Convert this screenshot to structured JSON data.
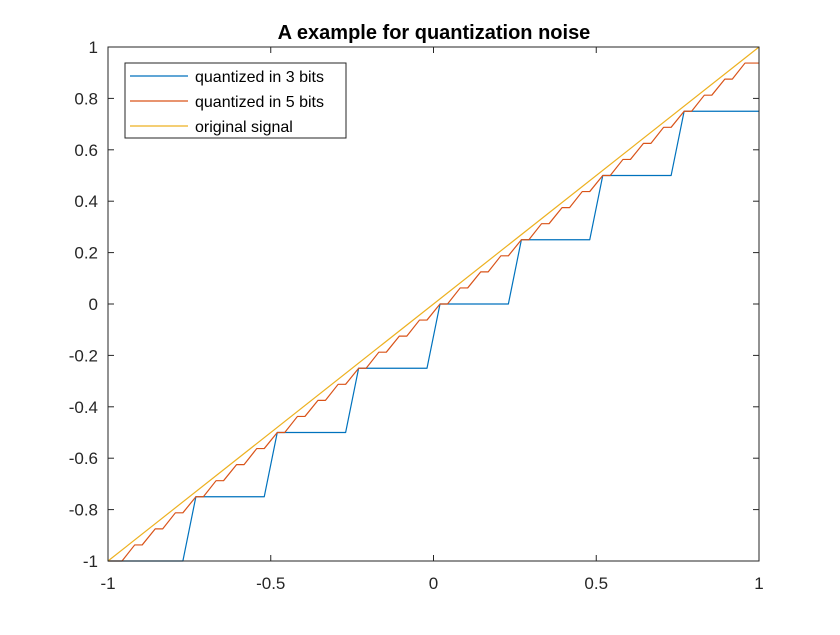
{
  "chart_data": {
    "type": "line",
    "title": "A example for quantization noise",
    "xlabel": "",
    "ylabel": "",
    "xlim": [
      -1,
      1
    ],
    "ylim": [
      -1,
      1
    ],
    "xticks": [
      -1,
      -0.5,
      0,
      0.5,
      1
    ],
    "xtick_labels": [
      "-1",
      "-0.5",
      "0",
      "0.5",
      "1"
    ],
    "yticks": [
      -1,
      -0.8,
      -0.6,
      -0.4,
      -0.2,
      0,
      0.2,
      0.4,
      0.6,
      0.8,
      1
    ],
    "ytick_labels": [
      "-1",
      "-0.8",
      "-0.6",
      "-0.4",
      "-0.2",
      "0",
      "0.2",
      "0.4",
      "0.6",
      "0.8",
      "1"
    ],
    "grid": false,
    "legend_position": "top-left",
    "series": [
      {
        "name": "quantized in 3 bits",
        "color": "#0072BD",
        "kind": "staircase",
        "x": [
          -1,
          -0.77,
          -0.73,
          -0.52,
          -0.48,
          -0.27,
          -0.23,
          -0.02,
          0.02,
          0.23,
          0.27,
          0.48,
          0.52,
          0.73,
          0.77,
          1
        ],
        "y": [
          -1,
          -1,
          -0.75,
          -0.75,
          -0.5,
          -0.5,
          -0.25,
          -0.25,
          0,
          0,
          0.25,
          0.25,
          0.5,
          0.5,
          0.75,
          0.75
        ]
      },
      {
        "name": "quantized in 5 bits",
        "color": "#D95319",
        "kind": "staircase",
        "x": [
          -1,
          -0.957,
          -0.918,
          -0.895,
          -0.855,
          -0.832,
          -0.793,
          -0.77,
          -0.73,
          -0.707,
          -0.668,
          -0.645,
          -0.605,
          -0.582,
          -0.543,
          -0.52,
          -0.48,
          -0.457,
          -0.418,
          -0.395,
          -0.355,
          -0.332,
          -0.293,
          -0.27,
          -0.23,
          -0.207,
          -0.168,
          -0.145,
          -0.105,
          -0.082,
          -0.043,
          -0.02,
          0.02,
          0.043,
          0.082,
          0.105,
          0.145,
          0.168,
          0.207,
          0.23,
          0.27,
          0.293,
          0.332,
          0.355,
          0.395,
          0.418,
          0.457,
          0.48,
          0.52,
          0.543,
          0.582,
          0.605,
          0.645,
          0.668,
          0.707,
          0.73,
          0.77,
          0.793,
          0.832,
          0.855,
          0.895,
          0.918,
          0.957,
          0.98,
          1
        ],
        "y": [
          -1,
          -1,
          -0.9375,
          -0.9375,
          -0.875,
          -0.875,
          -0.8125,
          -0.8125,
          -0.75,
          -0.75,
          -0.6875,
          -0.6875,
          -0.625,
          -0.625,
          -0.5625,
          -0.5625,
          -0.5,
          -0.5,
          -0.4375,
          -0.4375,
          -0.375,
          -0.375,
          -0.3125,
          -0.3125,
          -0.25,
          -0.25,
          -0.1875,
          -0.1875,
          -0.125,
          -0.125,
          -0.0625,
          -0.0625,
          0,
          0,
          0.0625,
          0.0625,
          0.125,
          0.125,
          0.1875,
          0.1875,
          0.25,
          0.25,
          0.3125,
          0.3125,
          0.375,
          0.375,
          0.4375,
          0.4375,
          0.5,
          0.5,
          0.5625,
          0.5625,
          0.625,
          0.625,
          0.6875,
          0.6875,
          0.75,
          0.75,
          0.8125,
          0.8125,
          0.875,
          0.875,
          0.9375,
          0.9375,
          0.9375
        ]
      },
      {
        "name": "original signal",
        "color": "#EDB120",
        "kind": "line",
        "x": [
          -1,
          1
        ],
        "y": [
          -1,
          1
        ]
      }
    ]
  }
}
